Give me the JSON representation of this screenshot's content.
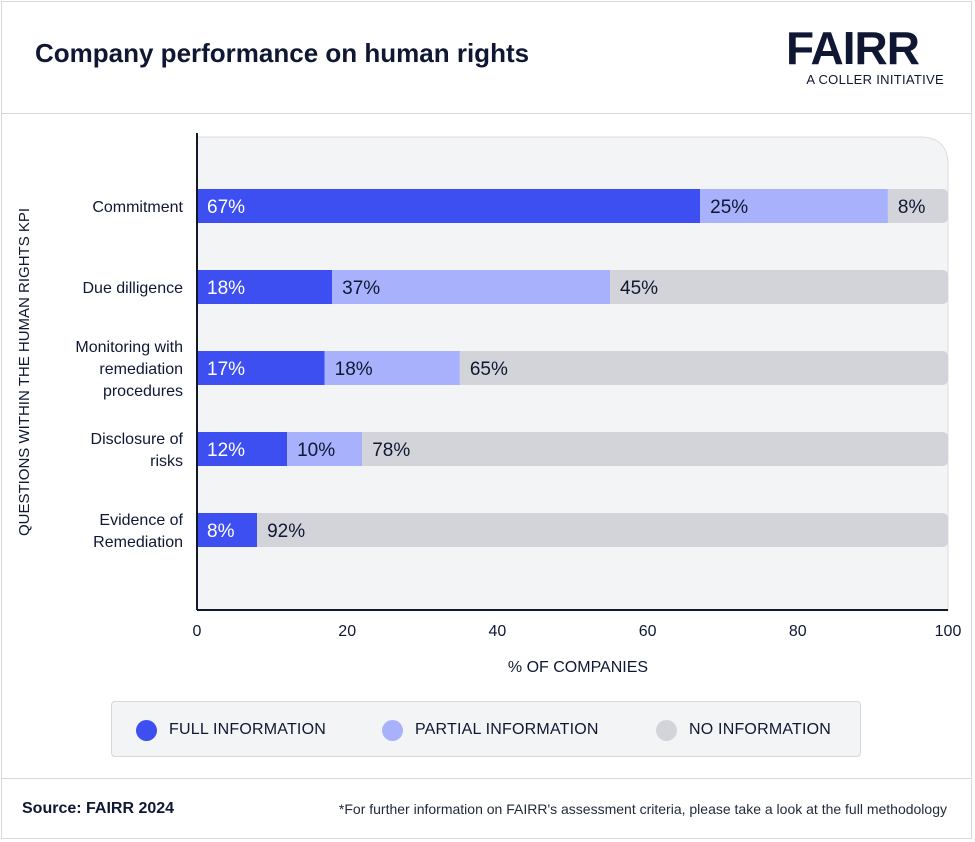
{
  "header": {
    "title": "Company performance on human rights",
    "logo_word": "FAIRR",
    "logo_sub": "A COLLER INITIATIVE"
  },
  "footer": {
    "source": "Source: FAIRR 2024",
    "footnote": "*For further information on FAIRR's assessment criteria, please take a look at the full methodology"
  },
  "colors": {
    "full": "#3d4ff0",
    "partial": "#a8b1fb",
    "none": "#d3d4d9",
    "plot_bg": "#f3f4f6",
    "text_dark": "#0f1733"
  },
  "chart_data": {
    "type": "bar",
    "orientation": "horizontal",
    "stacked": true,
    "title": "Company performance on human rights",
    "xlabel": "% OF COMPANIES",
    "ylabel": "QUESTIONS WITHIN THE HUMAN RIGHTS KPI",
    "xlim": [
      0,
      100
    ],
    "xticks": [
      0,
      20,
      40,
      60,
      80,
      100
    ],
    "categories": [
      [
        "Commitment"
      ],
      [
        "Due dilligence"
      ],
      [
        "Monitoring with",
        "remediation",
        "procedures"
      ],
      [
        "Disclosure of",
        "risks"
      ],
      [
        "Evidence of",
        "Remediation"
      ]
    ],
    "series": [
      {
        "name": "FULL INFORMATION",
        "color": "#3d4ff0",
        "values": [
          67,
          18,
          17,
          12,
          8
        ]
      },
      {
        "name": "PARTIAL INFORMATION",
        "color": "#a8b1fb",
        "values": [
          25,
          37,
          18,
          10,
          0
        ]
      },
      {
        "name": "NO INFORMATION",
        "color": "#d3d4d9",
        "values": [
          8,
          45,
          65,
          78,
          92
        ]
      }
    ],
    "data_label_suffix": "%"
  }
}
